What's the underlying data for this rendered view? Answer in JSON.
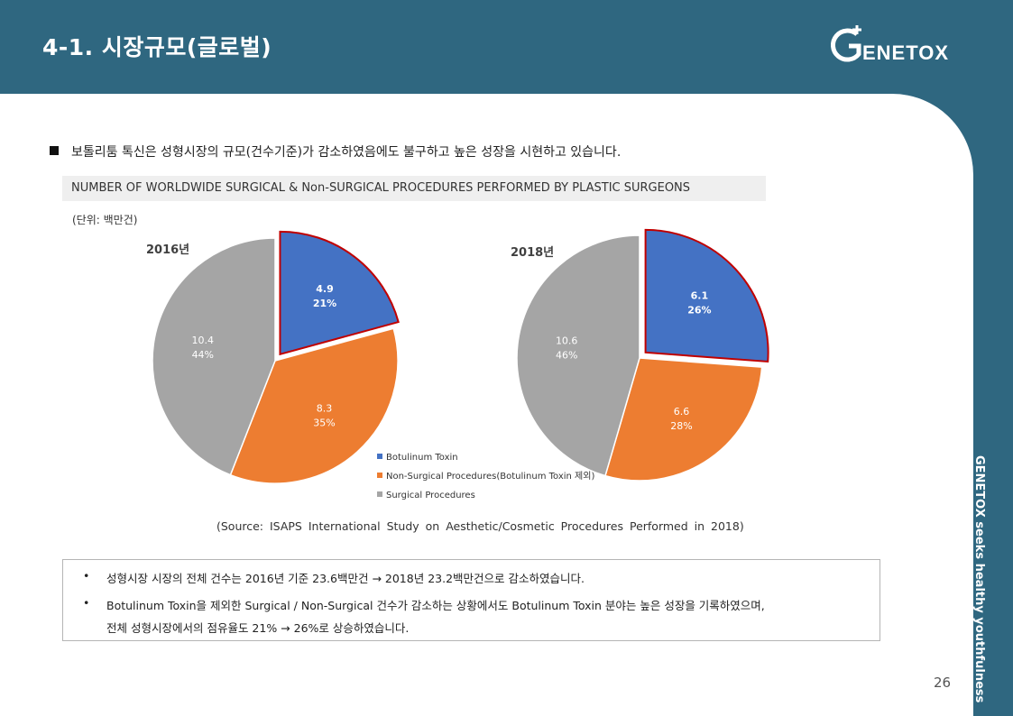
{
  "header": {
    "title": "4-1. 시장규모(글로벌)",
    "logo_text": "GENETOX"
  },
  "sidebar_tagline": "GENETOX seeks healthy youthfulness",
  "intro": "보톨리툼 톡신은 성형시장의 규모(건수기준)가 감소하였음에도 불구하고 높은 성장을 시현하고 있습니다.",
  "chart_banner": "NUMBER OF WORLDWIDE SURGICAL &  Non-SURGICAL PROCEDURES PERFORMED BY PLASTIC SURGEONS",
  "unit_label": "(단위: 백만건)",
  "chart_data": [
    {
      "type": "pie",
      "title": "2016년",
      "labels": [
        "Botulinum Toxin",
        "Non-Surgical Procedures(Botulinum Toxin 제외)",
        "Surgical Procedures"
      ],
      "values": [
        4.9,
        8.3,
        10.4
      ],
      "percent_labels": [
        "21%",
        "35%",
        "44%"
      ],
      "colors": [
        "#4472c4",
        "#ed7d31",
        "#a5a5a5"
      ],
      "exploded": "Botulinum Toxin"
    },
    {
      "type": "pie",
      "title": "2018년",
      "labels": [
        "Botulinum Toxin",
        "Non-Surgical Procedures(Botulinum Toxin 제외)",
        "Surgical Procedures"
      ],
      "values": [
        6.1,
        6.6,
        10.6
      ],
      "percent_labels": [
        "26%",
        "28%",
        "46%"
      ],
      "colors": [
        "#4472c4",
        "#ed7d31",
        "#a5a5a5"
      ],
      "exploded": "Botulinum Toxin"
    }
  ],
  "legend": [
    {
      "label": "Botulinum Toxin",
      "color": "#4472c4"
    },
    {
      "label": "Non-Surgical Procedures(Botulinum Toxin 제외)",
      "color": "#ed7d31"
    },
    {
      "label": "Surgical Procedures",
      "color": "#a5a5a5"
    }
  ],
  "source": "(Source: ISAPS International Study on Aesthetic/Cosmetic Procedures Performed in 2018)",
  "notes": {
    "bullet": "•",
    "line1": "성형시장 시장의 전체 건수는 2016년 기준 23.6백만건 → 2018년 23.2백만건으로 감소하였습니다.",
    "line2": "Botulinum Toxin을 제외한 Surgical / Non-Surgical 건수가 감소하는 상황에서도 Botulinum Toxin 분야는 높은 성장을 기록하였으며,",
    "line3": "전체 성형시장에서의 점유율도 21% → 26%로 상승하였습니다."
  },
  "page_number": "26"
}
